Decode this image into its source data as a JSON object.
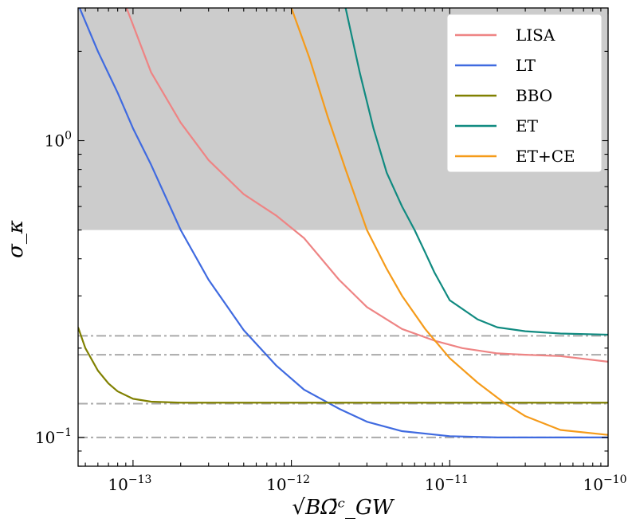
{
  "chart_data": {
    "type": "line",
    "xlabel": "√BΩ̄ᶜ_GW",
    "ylabel": "σ_κ",
    "xscale": "log",
    "yscale": "log",
    "xlim": [
      4.5e-14,
      1e-10
    ],
    "ylim": [
      0.08,
      2.8
    ],
    "grid": false,
    "legend_position": "top-right",
    "x_tick_labels": [
      {
        "value": 1e-13,
        "base": "10",
        "exp": "−13"
      },
      {
        "value": 1e-12,
        "base": "10",
        "exp": "−12"
      },
      {
        "value": 1e-11,
        "base": "10",
        "exp": "−11"
      },
      {
        "value": 1e-10,
        "base": "10",
        "exp": "−10"
      }
    ],
    "y_tick_labels": [
      {
        "value": 0.1,
        "base": "10",
        "exp": "−1"
      },
      {
        "value": 1,
        "base": "10",
        "exp": "0"
      }
    ],
    "shaded_region": {
      "y_from": 0.5,
      "y_to": 2.8,
      "color": "#cccccc"
    },
    "reference_lines": [
      0.1,
      0.13,
      0.19,
      0.22
    ],
    "reference_line_color": "#aaaaaa",
    "series": [
      {
        "name": "LISA",
        "color": "#ee8484",
        "x": [
          9.1e-14,
          1.3e-13,
          2e-13,
          3e-13,
          5e-13,
          8e-13,
          1.2e-12,
          2e-12,
          3e-12,
          5e-12,
          8e-12,
          1.2e-11,
          2e-11,
          3e-11,
          5e-11,
          1e-10
        ],
        "y": [
          2.8,
          1.7,
          1.15,
          0.86,
          0.66,
          0.56,
          0.47,
          0.34,
          0.275,
          0.232,
          0.212,
          0.2,
          0.192,
          0.19,
          0.188,
          0.18
        ]
      },
      {
        "name": "LT",
        "color": "#3f6ae0",
        "x": [
          4.6e-14,
          6e-14,
          8e-14,
          1e-13,
          1.3e-13,
          2e-13,
          3e-13,
          5e-13,
          8e-13,
          1.2e-12,
          2e-12,
          3e-12,
          5e-12,
          1e-11,
          2e-11,
          5e-11,
          1e-10
        ],
        "y": [
          2.8,
          2.0,
          1.45,
          1.1,
          0.83,
          0.5,
          0.34,
          0.23,
          0.175,
          0.145,
          0.125,
          0.113,
          0.105,
          0.101,
          0.1,
          0.1,
          0.1
        ]
      },
      {
        "name": "BBO",
        "color": "#808000",
        "x": [
          4.5e-14,
          5e-14,
          6e-14,
          7e-14,
          8e-14,
          1e-13,
          1.3e-13,
          2e-13,
          5e-13,
          1e-12,
          1e-11,
          1e-10
        ],
        "y": [
          0.235,
          0.2,
          0.168,
          0.152,
          0.143,
          0.135,
          0.132,
          0.131,
          0.131,
          0.131,
          0.131,
          0.131
        ]
      },
      {
        "name": "ET",
        "color": "#108a80",
        "x": [
          2.2e-12,
          2.7e-12,
          3.3e-12,
          4e-12,
          5e-12,
          6e-12,
          7e-12,
          8e-12,
          1e-11,
          1.5e-11,
          2e-11,
          3e-11,
          5e-11,
          1e-10
        ],
        "y": [
          2.8,
          1.7,
          1.1,
          0.78,
          0.6,
          0.5,
          0.42,
          0.36,
          0.29,
          0.25,
          0.235,
          0.228,
          0.224,
          0.222
        ]
      },
      {
        "name": "ET+CE",
        "color": "#f59b1a",
        "x": [
          1e-12,
          1.3e-12,
          1.7e-12,
          2.2e-12,
          3e-12,
          4e-12,
          5e-12,
          7e-12,
          1e-11,
          1.5e-11,
          2.2e-11,
          3e-11,
          5e-11,
          1e-10
        ],
        "y": [
          2.8,
          1.9,
          1.2,
          0.8,
          0.5,
          0.37,
          0.3,
          0.232,
          0.185,
          0.153,
          0.131,
          0.118,
          0.106,
          0.102
        ]
      }
    ]
  }
}
